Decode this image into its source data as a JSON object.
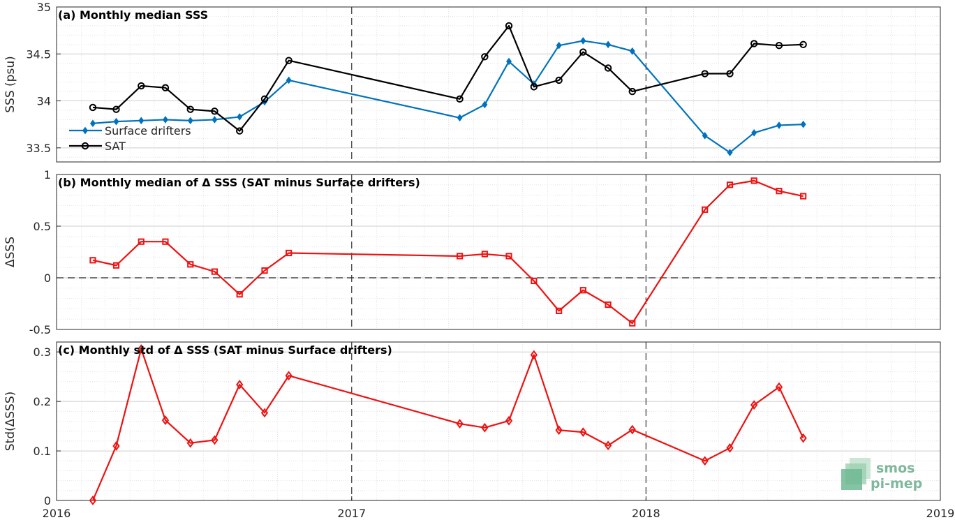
{
  "chart_data": [
    {
      "type": "line",
      "title": "(a) Monthly median SSS",
      "ylabel": "SSS (psu)",
      "xlim": [
        "2016-01-01",
        "2019-01-01"
      ],
      "ylim": [
        33.35,
        35
      ],
      "yticks": [
        33.5,
        34,
        34.5,
        35
      ],
      "ytick_labels": [
        "33.5",
        "34",
        "34.5",
        "35"
      ],
      "grid": true,
      "legend_position": "bottom-left",
      "x": [
        "2016-02-15",
        "2016-03-15",
        "2016-04-15",
        "2016-05-15",
        "2016-06-15",
        "2016-07-15",
        "2016-08-15",
        "2016-09-15",
        "2016-10-15",
        "2017-05-15",
        "2017-06-15",
        "2017-07-15",
        "2017-08-15",
        "2017-09-15",
        "2017-10-15",
        "2017-11-15",
        "2017-12-15",
        "2018-03-15",
        "2018-04-15",
        "2018-05-15",
        "2018-06-15",
        "2018-07-15"
      ],
      "series": [
        {
          "name": "Surface drifters",
          "color": "#0072bd",
          "marker": "diamond",
          "values": [
            33.76,
            33.78,
            33.79,
            33.8,
            33.79,
            33.8,
            33.83,
            33.99,
            34.22,
            33.82,
            33.96,
            34.42,
            34.18,
            34.59,
            34.64,
            34.6,
            34.53,
            33.63,
            33.45,
            33.66,
            33.74,
            33.75
          ]
        },
        {
          "name": "SAT",
          "color": "#000000",
          "marker": "circle",
          "values": [
            33.93,
            33.91,
            34.16,
            34.14,
            33.91,
            33.89,
            33.68,
            34.02,
            34.43,
            34.02,
            34.47,
            34.8,
            34.15,
            34.22,
            34.52,
            34.35,
            34.1,
            34.29,
            34.29,
            34.61,
            34.59,
            34.6
          ]
        }
      ]
    },
    {
      "type": "line",
      "title": "(b) Monthly median of Δ SSS (SAT minus Surface drifters)",
      "ylabel": "ΔSSS",
      "ylim": [
        -0.5,
        1
      ],
      "yticks": [
        -0.5,
        0,
        0.5,
        1
      ],
      "ytick_labels": [
        "-0.5",
        "0",
        "0.5",
        "1"
      ],
      "grid": true,
      "zero_line": true,
      "series": [
        {
          "color": "#ee1111",
          "marker": "square",
          "values": [
            0.17,
            0.12,
            0.35,
            0.35,
            0.13,
            0.06,
            -0.16,
            0.07,
            0.24,
            0.21,
            0.23,
            0.21,
            -0.03,
            -0.32,
            -0.12,
            -0.26,
            -0.44,
            0.66,
            0.9,
            0.94,
            0.84,
            0.79
          ]
        }
      ]
    },
    {
      "type": "line",
      "title": "(c) Monthly std of Δ SSS (SAT minus Surface drifters)",
      "ylabel": "Std(ΔSSS)",
      "ylim": [
        0,
        0.32
      ],
      "yticks": [
        0,
        0.1,
        0.2,
        0.3
      ],
      "ytick_labels": [
        "0",
        "0.1",
        "0.2",
        "0.3"
      ],
      "xticks": [
        "2016-01-01",
        "2017-01-01",
        "2018-01-01",
        "2019-01-01"
      ],
      "xtick_labels": [
        "2016",
        "2017",
        "2018",
        "2019"
      ],
      "grid": true,
      "series": [
        {
          "color": "#ee1111",
          "marker": "diamond",
          "values": [
            0.0,
            0.11,
            0.306,
            0.162,
            0.116,
            0.122,
            0.234,
            0.177,
            0.252,
            0.155,
            0.147,
            0.161,
            0.294,
            0.142,
            0.138,
            0.111,
            0.143,
            0.08,
            0.106,
            0.193,
            0.229,
            0.126
          ]
        }
      ]
    }
  ],
  "logo": {
    "line1": "smos",
    "line2": "pi-mep",
    "color": "#7fb89c"
  }
}
